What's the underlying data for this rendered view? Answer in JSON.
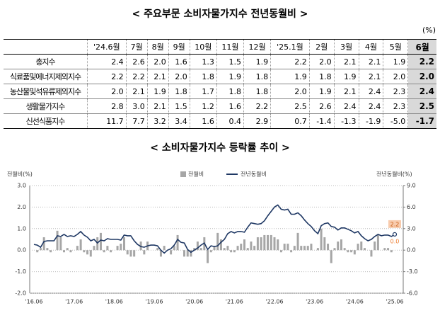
{
  "table": {
    "title": "< 주요부문 소비자물가지수 전년동월비 >",
    "unit": "(%)",
    "header": [
      "'24.6월",
      "7월",
      "8월",
      "9월",
      "10월",
      "11월",
      "12월",
      "'25.1월",
      "2월",
      "3월",
      "4월",
      "5월",
      "6월"
    ],
    "rows": [
      [
        "총지수",
        "2.4",
        "2.6",
        "2.0",
        "1.6",
        "1.3",
        "1.5",
        "1.9",
        "2.2",
        "2.0",
        "2.1",
        "2.1",
        "1.9",
        "2.2"
      ],
      [
        "식료품및에너지제외지수",
        "2.2",
        "2.2",
        "2.1",
        "2.0",
        "1.8",
        "1.9",
        "1.8",
        "1.9",
        "1.8",
        "1.9",
        "2.1",
        "2.0",
        "2.0"
      ],
      [
        "농산물및석유류제외지수",
        "2.0",
        "2.1",
        "1.9",
        "1.8",
        "1.7",
        "1.8",
        "1.8",
        "2.0",
        "1.9",
        "2.1",
        "2.4",
        "2.3",
        "2.4"
      ],
      [
        "생활물가지수",
        "2.8",
        "3.0",
        "2.1",
        "1.5",
        "1.2",
        "1.6",
        "2.2",
        "2.5",
        "2.6",
        "2.4",
        "2.4",
        "2.3",
        "2.5"
      ],
      [
        "신선식품지수",
        "11.7",
        "7.7",
        "3.2",
        "3.4",
        "1.6",
        "0.4",
        "2.9",
        "0.7",
        "-1.4",
        "-1.3",
        "-1.9",
        "-5.0",
        "-1.7"
      ]
    ]
  },
  "chart_data": {
    "type": "bar_line",
    "title": "< 소비자물가지수 등락률 추이 >",
    "ylabel": "전월비(%)",
    "y2label": "전년동월비(%)",
    "ylim": [
      -2,
      3
    ],
    "yticks": [
      {
        "value": -2,
        "label": "-2.0"
      },
      {
        "value": -1,
        "label": "-1.0"
      },
      {
        "value": 0,
        "label": "0.0"
      },
      {
        "value": 1,
        "label": "1.0"
      },
      {
        "value": 2,
        "label": "2.0"
      },
      {
        "value": 3,
        "label": "3.0"
      }
    ],
    "y2lim": [
      -6,
      9
    ],
    "y2ticks": [
      {
        "value": -6,
        "label": "-6.0"
      },
      {
        "value": -3,
        "label": "-3.0"
      },
      {
        "value": 0,
        "label": "0.0"
      },
      {
        "value": 3,
        "label": "3.0"
      },
      {
        "value": 6,
        "label": "6.0"
      },
      {
        "value": 9,
        "label": "9.0"
      }
    ],
    "grid": true,
    "categories": [
      "'16.06",
      null,
      null,
      null,
      null,
      null,
      null,
      null,
      null,
      null,
      null,
      null,
      "'17.06",
      null,
      null,
      null,
      null,
      null,
      null,
      null,
      null,
      null,
      null,
      null,
      "'18.06",
      null,
      null,
      null,
      null,
      null,
      null,
      null,
      null,
      null,
      null,
      null,
      "'19.06",
      null,
      null,
      null,
      null,
      null,
      null,
      null,
      null,
      null,
      null,
      null,
      "'20.06",
      null,
      null,
      null,
      null,
      null,
      null,
      null,
      null,
      null,
      null,
      null,
      "'21.06",
      null,
      null,
      null,
      null,
      null,
      null,
      null,
      null,
      null,
      null,
      null,
      "'22.06",
      null,
      null,
      null,
      null,
      null,
      null,
      null,
      null,
      null,
      null,
      null,
      "'23.06",
      null,
      null,
      null,
      null,
      null,
      null,
      null,
      null,
      null,
      null,
      null,
      "'24.06",
      null,
      null,
      null,
      null,
      null,
      null,
      null,
      null,
      null,
      null,
      null,
      "'25.06"
    ],
    "series": [
      {
        "name": "전월비",
        "color": "#a6a6a6",
        "values": [
          0.0,
          -0.1,
          0.1,
          0.6,
          0.1,
          -0.1,
          0.0,
          0.9,
          0.6,
          -0.1,
          0.1,
          -0.1,
          0.0,
          0.2,
          0.5,
          -0.1,
          -0.2,
          -0.3,
          0.2,
          0.6,
          0.8,
          -0.1,
          0.2,
          -0.1,
          0.0,
          0.2,
          0.3,
          0.6,
          -0.2,
          -0.3,
          -0.3,
          0.0,
          0.4,
          -0.2,
          0.4,
          0.0,
          0.0,
          0.1,
          -0.3,
          0.2,
          0.0,
          -0.2,
          0.2,
          0.7,
          0.0,
          -0.3,
          -0.3,
          -0.3,
          0.1,
          0.4,
          0.1,
          0.6,
          -0.6,
          -0.1,
          0.2,
          0.8,
          0.5,
          0.1,
          0.2,
          -0.1,
          -0.1,
          0.2,
          0.3,
          0.5,
          0.1,
          0.4,
          0.2,
          0.6,
          0.6,
          0.7,
          0.7,
          0.7,
          0.6,
          0.5,
          -0.1,
          0.3,
          0.3,
          -0.1,
          0.2,
          0.8,
          0.2,
          0.2,
          0.2,
          0.3,
          0.0,
          0.1,
          1.0,
          0.6,
          0.3,
          -0.6,
          0.1,
          0.4,
          0.5,
          0.1,
          -0.1,
          -0.1,
          -0.2,
          0.3,
          0.4,
          0.1,
          0.0,
          -0.3,
          0.4,
          0.7,
          0.0,
          0.1,
          0.1,
          -0.1,
          0.0
        ]
      },
      {
        "name": "전년동월비",
        "color": "#1f3864",
        "axis": "y2",
        "values": [
          0.8,
          0.7,
          0.4,
          1.2,
          1.3,
          1.3,
          1.3,
          2.0,
          1.9,
          2.2,
          1.9,
          2.0,
          1.9,
          2.2,
          2.6,
          2.1,
          1.8,
          1.3,
          1.5,
          1.0,
          1.4,
          1.3,
          1.6,
          1.5,
          1.5,
          1.5,
          1.4,
          2.1,
          2.0,
          2.0,
          1.3,
          0.8,
          0.5,
          0.4,
          0.6,
          0.7,
          0.7,
          0.6,
          0.0,
          -0.4,
          0.0,
          0.2,
          0.7,
          1.5,
          1.1,
          1.0,
          0.1,
          -0.3,
          0.0,
          0.3,
          0.7,
          1.0,
          0.1,
          0.6,
          0.5,
          0.6,
          1.1,
          1.5,
          2.3,
          2.6,
          2.4,
          2.6,
          2.6,
          2.5,
          3.2,
          3.8,
          3.7,
          3.6,
          3.7,
          4.1,
          4.8,
          5.4,
          6.0,
          6.3,
          5.7,
          5.6,
          5.7,
          5.0,
          5.0,
          5.2,
          4.8,
          4.2,
          3.7,
          3.3,
          2.7,
          2.3,
          3.4,
          3.7,
          3.8,
          3.3,
          3.2,
          2.8,
          3.1,
          3.1,
          2.9,
          2.7,
          2.4,
          2.6,
          2.0,
          1.6,
          1.3,
          1.5,
          1.9,
          2.2,
          2.0,
          2.1,
          2.1,
          1.9,
          2.2
        ]
      }
    ],
    "annotations": [
      "2.2",
      "0.0"
    ]
  }
}
